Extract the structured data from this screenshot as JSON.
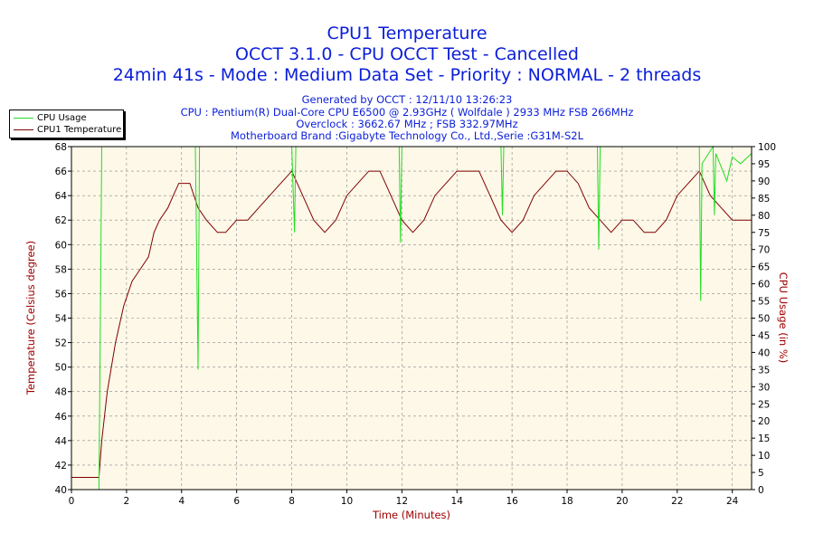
{
  "header": {
    "title_main": "CPU1 Temperature",
    "title_line2": "OCCT 3.1.0 - CPU OCCT Test - Cancelled",
    "title_line3": "24min 41s - Mode : Medium Data Set - Priority : NORMAL - 2 threads",
    "info_generated": "Generated by OCCT : 12/11/10 13:26:23",
    "info_cpu": "CPU : Pentium(R) Dual-Core CPU E6500 @ 2.93GHz ( Wolfdale ) 2933 MHz FSB 266MHz",
    "info_overclock": "Overclock : 3662.67 MHz ; FSB 332.97MHz",
    "info_motherboard": "Motherboard Brand :Gigabyte Technology Co., Ltd.,Serie :G31M-S2L"
  },
  "legend": {
    "cpu_usage_label": "CPU Usage",
    "cpu_temp_label": "CPU1 Temperature"
  },
  "colors": {
    "usage": "#22dd22",
    "temperature": "#800000",
    "plot_bg": "#fdf8e8",
    "grid": "#888888",
    "title": "#0a1ed8",
    "axis_label": "#a00000"
  },
  "chart_data": {
    "type": "line",
    "title": "CPU1 Temperature",
    "xlabel": "Time (Minutes)",
    "ylabel_left": "Temperature (Celsius degree)",
    "ylabel_right": "CPU Usage (in %)",
    "xlim": [
      0,
      24.7
    ],
    "ylim_left": [
      40,
      68
    ],
    "ylim_right": [
      0,
      100
    ],
    "x_ticks": [
      "0",
      "2",
      "4",
      "6",
      "8",
      "10",
      "12",
      "14",
      "16",
      "18",
      "20",
      "22",
      "24"
    ],
    "y_left_ticks": [
      "40",
      "42",
      "44",
      "46",
      "48",
      "50",
      "52",
      "54",
      "56",
      "58",
      "60",
      "62",
      "64",
      "66",
      "68"
    ],
    "y_right_ticks": [
      "0",
      "5",
      "10",
      "15",
      "20",
      "25",
      "30",
      "35",
      "40",
      "45",
      "50",
      "55",
      "60",
      "65",
      "70",
      "75",
      "80",
      "85",
      "90",
      "95",
      "100"
    ],
    "grid": true,
    "legend_position": "top-left",
    "series": [
      {
        "name": "CPU1 Temperature",
        "axis": "left",
        "x": [
          0,
          1.0,
          1.1,
          1.3,
          1.6,
          1.9,
          2.2,
          2.5,
          2.8,
          3.0,
          3.2,
          3.5,
          3.7,
          3.9,
          4.1,
          4.3,
          4.6,
          4.9,
          5.3,
          5.6,
          6.0,
          6.4,
          6.8,
          7.2,
          7.6,
          8.0,
          8.4,
          8.8,
          9.2,
          9.6,
          10.0,
          10.4,
          10.8,
          11.2,
          11.6,
          12.0,
          12.4,
          12.8,
          13.2,
          13.6,
          14.0,
          14.4,
          14.8,
          15.2,
          15.6,
          16.0,
          16.4,
          16.8,
          17.2,
          17.6,
          18.0,
          18.4,
          18.8,
          19.2,
          19.6,
          20.0,
          20.4,
          20.8,
          21.2,
          21.6,
          22.0,
          22.4,
          22.8,
          23.2,
          23.6,
          24.0,
          24.3,
          24.7
        ],
        "values": [
          41,
          41,
          44,
          48,
          52,
          55,
          57,
          58,
          59,
          61,
          62,
          63,
          64,
          65,
          65,
          65,
          63,
          62,
          61,
          61,
          62,
          62,
          63,
          64,
          65,
          66,
          64,
          62,
          61,
          62,
          64,
          65,
          66,
          66,
          64,
          62,
          61,
          62,
          64,
          65,
          66,
          66,
          66,
          64,
          62,
          61,
          62,
          64,
          65,
          66,
          66,
          65,
          63,
          62,
          61,
          62,
          62,
          61,
          61,
          62,
          64,
          65,
          66,
          64,
          63,
          62,
          62,
          62
        ]
      },
      {
        "name": "CPU Usage",
        "axis": "right",
        "x": [
          0,
          1.0,
          1.05,
          1.1,
          2.0,
          3.0,
          4.0,
          4.5,
          4.6,
          4.65,
          4.7,
          5.0,
          6.0,
          7.0,
          8.0,
          8.1,
          8.15,
          8.2,
          9.0,
          10.0,
          11.9,
          11.95,
          12.0,
          12.05,
          13.0,
          14.0,
          15.0,
          15.6,
          15.65,
          15.7,
          16.0,
          17.0,
          18.0,
          19.1,
          19.15,
          19.2,
          20.0,
          21.0,
          22.0,
          22.8,
          22.85,
          22.9,
          23.3,
          23.35,
          23.4,
          23.8,
          24.0,
          24.3,
          24.7
        ],
        "values": [
          0,
          0,
          50,
          100,
          100,
          100,
          100,
          100,
          35,
          100,
          100,
          100,
          100,
          100,
          100,
          75,
          100,
          100,
          100,
          100,
          100,
          72,
          100,
          100,
          100,
          100,
          100,
          100,
          80,
          100,
          100,
          100,
          100,
          100,
          70,
          100,
          100,
          100,
          100,
          100,
          55,
          95,
          100,
          80,
          98,
          90,
          97,
          95,
          98
        ]
      }
    ]
  }
}
